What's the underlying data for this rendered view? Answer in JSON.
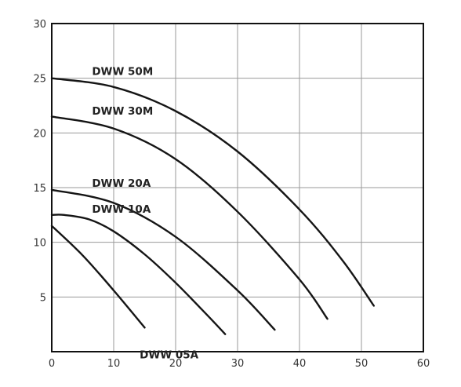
{
  "chart_data": {
    "type": "line",
    "title": "",
    "xlabel": "",
    "ylabel": "",
    "xlim": [
      0,
      60
    ],
    "ylim": [
      0,
      30
    ],
    "x_ticks": [
      0,
      10,
      20,
      30,
      40,
      50,
      60
    ],
    "y_ticks": [
      5,
      10,
      15,
      20,
      25,
      30
    ],
    "grid": true,
    "series": [
      {
        "name": "DWW 50M",
        "label_at": [
          6.5,
          25
        ],
        "points": [
          [
            0,
            25.0
          ],
          [
            10,
            24.2
          ],
          [
            20,
            22.0
          ],
          [
            30,
            18.3
          ],
          [
            40,
            13.0
          ],
          [
            47,
            8.3
          ],
          [
            52,
            4.2
          ]
        ]
      },
      {
        "name": "DWW 30M",
        "label_at": [
          6.5,
          21.4
        ],
        "points": [
          [
            0,
            21.5
          ],
          [
            10,
            20.4
          ],
          [
            20,
            17.6
          ],
          [
            30,
            12.8
          ],
          [
            40,
            6.6
          ],
          [
            44.5,
            3.0
          ]
        ]
      },
      {
        "name": "DWW  20A",
        "label_at": [
          6.5,
          14.8
        ],
        "points": [
          [
            0,
            14.8
          ],
          [
            10,
            13.6
          ],
          [
            20,
            10.5
          ],
          [
            30,
            5.6
          ],
          [
            36,
            2.0
          ]
        ]
      },
      {
        "name": "DWW 10A",
        "label_at": [
          6.5,
          12.4
        ],
        "points": [
          [
            0,
            12.5
          ],
          [
            2,
            12.5
          ],
          [
            6,
            12.1
          ],
          [
            10,
            11.0
          ],
          [
            15,
            8.9
          ],
          [
            20,
            6.3
          ],
          [
            25,
            3.4
          ],
          [
            28,
            1.6
          ]
        ]
      },
      {
        "name": "DWW 05A",
        "label_at": [
          14.2,
          -0.9
        ],
        "points": [
          [
            0,
            11.5
          ],
          [
            5,
            8.8
          ],
          [
            10,
            5.6
          ],
          [
            15,
            2.2
          ]
        ]
      }
    ]
  }
}
